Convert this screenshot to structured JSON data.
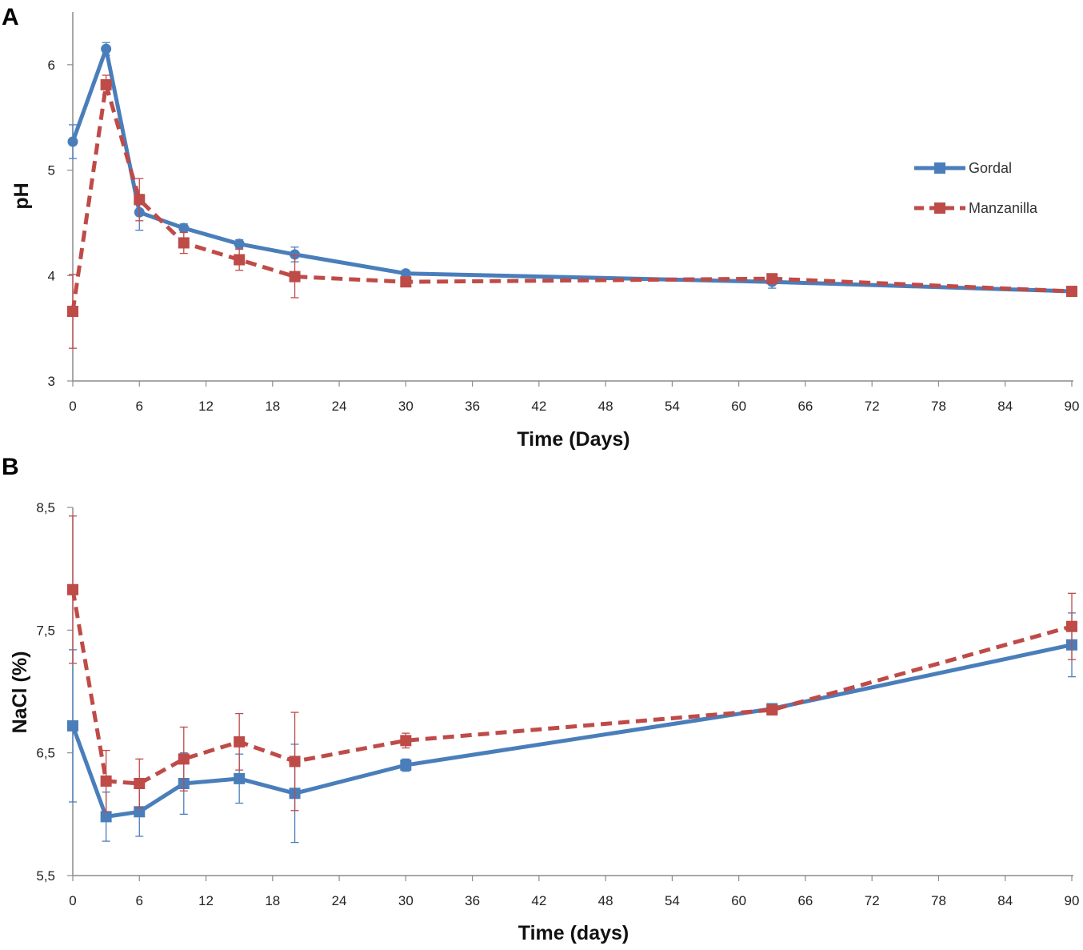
{
  "colors": {
    "gordal": "#4a7ebb",
    "manzanilla": "#be4b48",
    "axis": "#8c8c8c"
  },
  "legend": {
    "gordal": "Gordal",
    "manzanilla": "Manzanilla",
    "placement": "top-right"
  },
  "chart_data": [
    {
      "type": "line",
      "panel_label": "A",
      "title": "",
      "xlabel": "Time (Days)",
      "ylabel": "pH",
      "xlim": [
        0,
        90
      ],
      "ylim": [
        3,
        6.5
      ],
      "x_ticks": [
        0,
        6,
        12,
        18,
        24,
        30,
        36,
        42,
        48,
        54,
        60,
        66,
        72,
        78,
        84,
        90
      ],
      "y_ticks": [
        3,
        4,
        5,
        6
      ],
      "grid": false,
      "series": [
        {
          "name": "Gordal",
          "marker": "circle",
          "dash": "solid",
          "x": [
            0,
            3,
            6,
            10,
            15,
            20,
            30,
            63,
            90
          ],
          "values": [
            5.27,
            6.15,
            4.6,
            4.45,
            4.3,
            4.2,
            4.02,
            3.94,
            3.85
          ],
          "error": [
            0.16,
            0.06,
            0.17,
            0.04,
            0.04,
            0.07,
            0.03,
            0.06,
            0.03
          ]
        },
        {
          "name": "Manzanilla",
          "marker": "square",
          "dash": "dashed",
          "x": [
            0,
            3,
            6,
            10,
            15,
            20,
            30,
            63,
            90
          ],
          "values": [
            3.66,
            5.81,
            4.72,
            4.31,
            4.15,
            3.99,
            3.94,
            3.97,
            3.85
          ],
          "error": [
            0.35,
            0.09,
            0.2,
            0.1,
            0.1,
            0.2,
            0.03,
            0.04,
            0.03
          ]
        }
      ]
    },
    {
      "type": "line",
      "panel_label": "B",
      "title": "",
      "xlabel": "Time (days)",
      "ylabel": "NaCl (%)",
      "xlim": [
        0,
        90
      ],
      "ylim": [
        5.5,
        8.5
      ],
      "x_ticks": [
        0,
        6,
        12,
        18,
        24,
        30,
        36,
        42,
        48,
        54,
        60,
        66,
        72,
        78,
        84,
        90
      ],
      "y_ticks": [
        5.5,
        6.5,
        7.5,
        8.5
      ],
      "y_tick_labels": [
        "5,5",
        "6,5",
        "7,5",
        "8,5"
      ],
      "grid": false,
      "series": [
        {
          "name": "Gordal",
          "marker": "square",
          "dash": "solid",
          "x": [
            0,
            3,
            6,
            10,
            15,
            20,
            30,
            63,
            90
          ],
          "values": [
            6.72,
            5.98,
            6.02,
            6.25,
            6.29,
            6.17,
            6.4,
            6.86,
            7.38
          ],
          "error": [
            0.62,
            0.2,
            0.2,
            0.25,
            0.2,
            0.4,
            0.05,
            0.04,
            0.26
          ]
        },
        {
          "name": "Manzanilla",
          "marker": "square",
          "dash": "dashed",
          "x": [
            0,
            3,
            6,
            10,
            15,
            20,
            30,
            63,
            90
          ],
          "values": [
            7.83,
            6.27,
            6.25,
            6.45,
            6.59,
            6.43,
            6.6,
            6.85,
            7.53
          ],
          "error": [
            0.6,
            0.25,
            0.2,
            0.26,
            0.23,
            0.4,
            0.06,
            0.04,
            0.27
          ]
        }
      ]
    }
  ]
}
